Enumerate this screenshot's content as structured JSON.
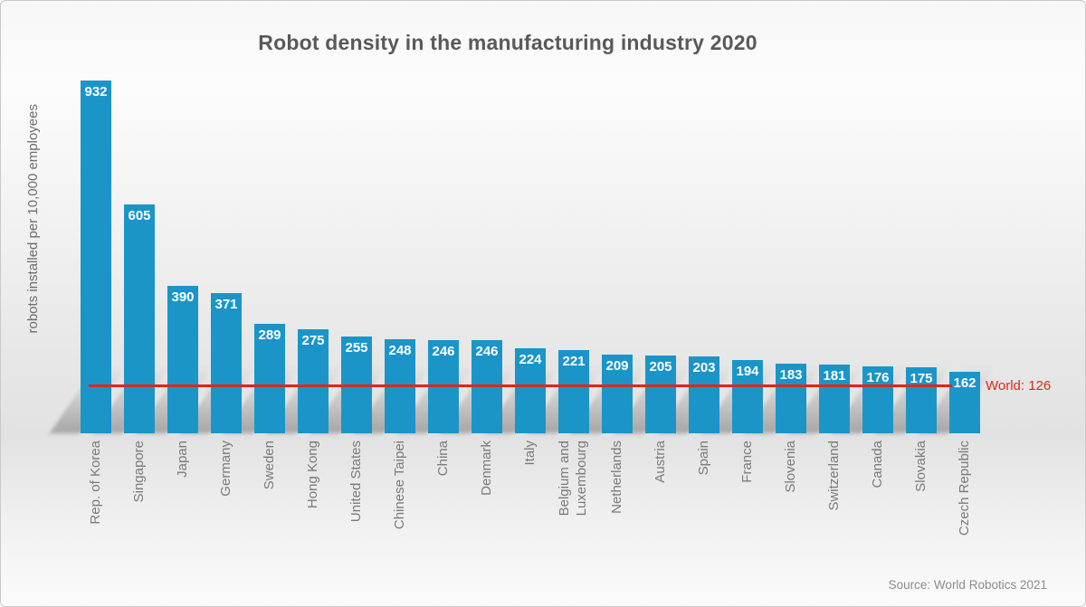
{
  "chart_data": {
    "type": "bar",
    "title": "Robot density in the manufacturing industry 2020",
    "ylabel": "robots installed per 10,000 employees",
    "xlabel": "",
    "categories": [
      "Rep. of Korea",
      "Singapore",
      "Japan",
      "Germany",
      "Sweden",
      "Hong Kong",
      "United States",
      "Chinese Taipei",
      "China",
      "Denmark",
      "Italy",
      "Belgium and\nLuxembourg",
      "Netherlands",
      "Austria",
      "Spain",
      "France",
      "Slovenia",
      "Switzerland",
      "Canada",
      "Slovakia",
      "Czech Republic"
    ],
    "values": [
      932,
      605,
      390,
      371,
      289,
      275,
      255,
      248,
      246,
      246,
      224,
      221,
      209,
      205,
      203,
      194,
      183,
      181,
      176,
      175,
      162
    ],
    "reference_line": {
      "label": "World: 126",
      "value": 126
    },
    "source": "Source: World Robotics 2021",
    "ylim": [
      0,
      1000
    ],
    "grid": false,
    "legend": "none",
    "bar_color": "#1b95c8",
    "line_color": "#e0251c",
    "value_label_color": "#ffffff",
    "title_color": "#595959"
  }
}
